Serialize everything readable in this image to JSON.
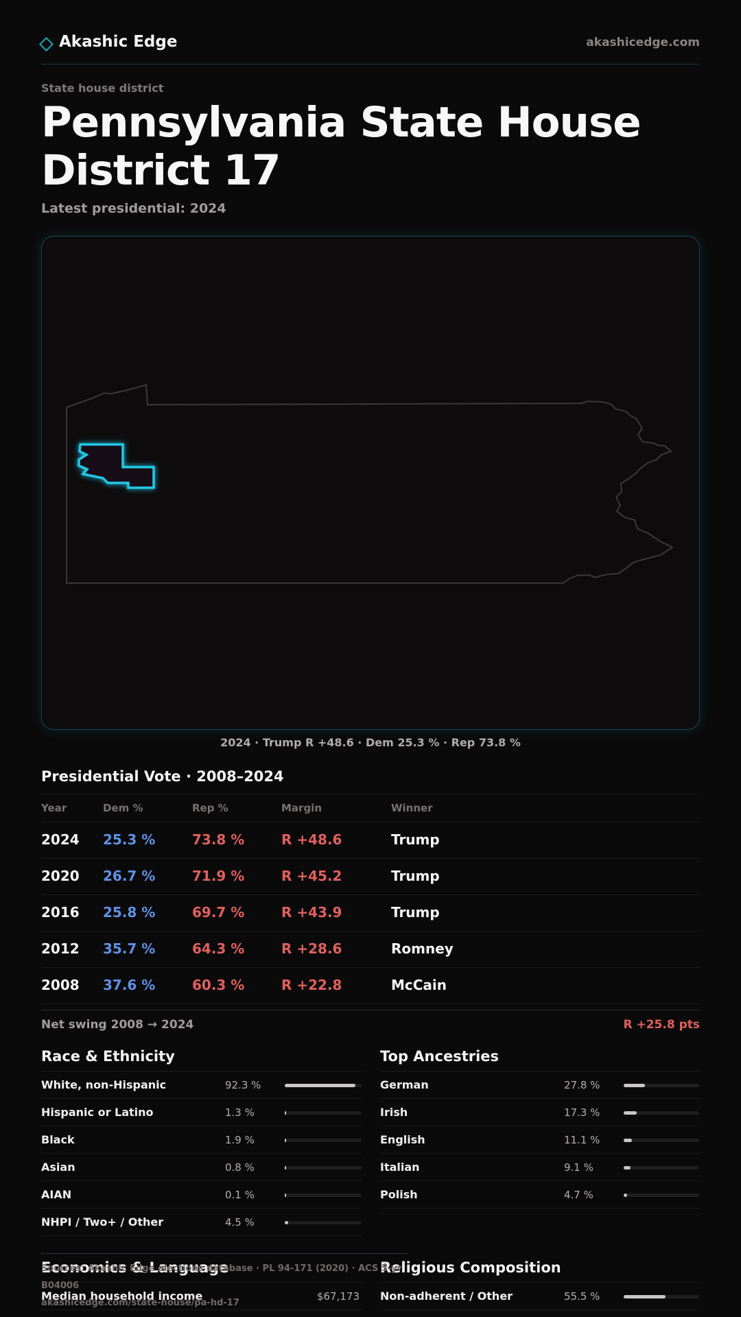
{
  "header": {
    "brand": "Akashic Edge",
    "domain": "akashicedge.com"
  },
  "page": {
    "eyebrow": "State house district",
    "title": "Pennsylvania State House District 17",
    "subtitle": "Latest presidential: 2024"
  },
  "map": {
    "caption": "2024 · Trump R +48.6 · Dem 25.3 % · Rep 73.8 %",
    "highlight_color": "#22c8e8"
  },
  "presidential": {
    "title": "Presidential Vote · 2008–2024",
    "columns": {
      "year": "Year",
      "dem": "Dem %",
      "rep": "Rep %",
      "margin": "Margin",
      "winner": "Winner"
    },
    "rows": [
      {
        "year": "2024",
        "dem": "25.3 %",
        "rep": "73.8 %",
        "margin": "R +48.6",
        "winner": "Trump"
      },
      {
        "year": "2020",
        "dem": "26.7 %",
        "rep": "71.9 %",
        "margin": "R +45.2",
        "winner": "Trump"
      },
      {
        "year": "2016",
        "dem": "25.8 %",
        "rep": "69.7 %",
        "margin": "R +43.9",
        "winner": "Trump"
      },
      {
        "year": "2012",
        "dem": "35.7 %",
        "rep": "64.3 %",
        "margin": "R +28.6",
        "winner": "Romney"
      },
      {
        "year": "2008",
        "dem": "37.6 %",
        "rep": "60.3 %",
        "margin": "R +22.8",
        "winner": "McCain"
      }
    ],
    "swing_label": "Net swing 2008 → 2024",
    "swing_value": "R +25.8 pts"
  },
  "race": {
    "title": "Race & Ethnicity",
    "rows": [
      {
        "label": "White, non-Hispanic",
        "value": "92.3 %",
        "share": 0.923
      },
      {
        "label": "Hispanic or Latino",
        "value": "1.3 %",
        "share": 0.013
      },
      {
        "label": "Black",
        "value": "1.9 %",
        "share": 0.019
      },
      {
        "label": "Asian",
        "value": "0.8 %",
        "share": 0.008
      },
      {
        "label": "AIAN",
        "value": "0.1 %",
        "share": 0.001
      },
      {
        "label": "NHPI / Two+ / Other",
        "value": "4.5 %",
        "share": 0.045
      }
    ]
  },
  "ancestry": {
    "title": "Top Ancestries",
    "rows": [
      {
        "label": "German",
        "value": "27.8 %",
        "share": 0.278
      },
      {
        "label": "Irish",
        "value": "17.3 %",
        "share": 0.173
      },
      {
        "label": "English",
        "value": "11.1 %",
        "share": 0.111
      },
      {
        "label": "Italian",
        "value": "9.1 %",
        "share": 0.091
      },
      {
        "label": "Polish",
        "value": "4.7 %",
        "share": 0.047
      }
    ]
  },
  "economics": {
    "title": "Economics & Language",
    "rows": [
      {
        "label": "Median household income",
        "value": "$67,173"
      }
    ]
  },
  "religion": {
    "title": "Religious Composition",
    "rows": [
      {
        "label": "Non-adherent / Other",
        "value": "55.5 %",
        "share": 0.555
      }
    ]
  },
  "footer": {
    "sources": "Sources: Akashic Edge elections database · PL 94-171 (2020) · ACS 5-yr B04006",
    "url": "akashicedge.com/state-house/pa-hd-17"
  }
}
